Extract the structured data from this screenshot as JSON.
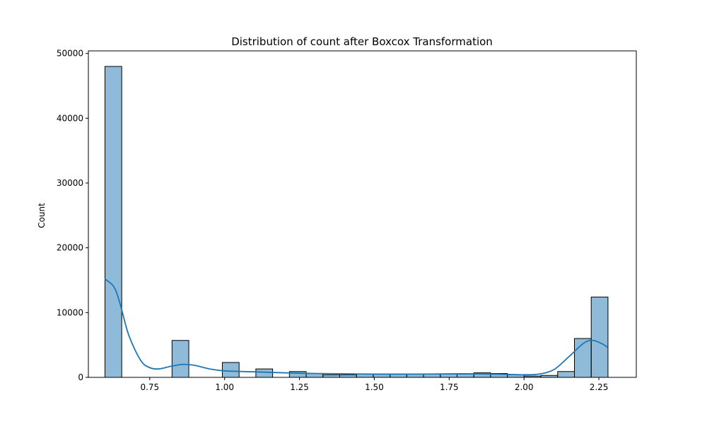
{
  "chart_data": {
    "type": "bar",
    "title": "Distribution of count after Boxcox Transformation",
    "xlabel": "",
    "ylabel": "Count",
    "xlim": [
      0.545,
      2.375
    ],
    "ylim": [
      0,
      50400
    ],
    "grid": false,
    "xticks": [
      {
        "value": 0.75,
        "label": "0.75"
      },
      {
        "value": 1.0,
        "label": "1.00"
      },
      {
        "value": 1.25,
        "label": "1.25"
      },
      {
        "value": 1.5,
        "label": "1.50"
      },
      {
        "value": 1.75,
        "label": "1.75"
      },
      {
        "value": 2.0,
        "label": "2.00"
      },
      {
        "value": 2.25,
        "label": "2.25"
      }
    ],
    "yticks": [
      {
        "value": 0,
        "label": "0"
      },
      {
        "value": 10000,
        "label": "10000"
      },
      {
        "value": 20000,
        "label": "20000"
      },
      {
        "value": 30000,
        "label": "30000"
      },
      {
        "value": 40000,
        "label": "40000"
      },
      {
        "value": 50000,
        "label": "50000"
      }
    ],
    "bin_edges": [
      0.6004,
      0.6564,
      0.7124,
      0.7684,
      0.8244,
      0.8804,
      0.9364,
      0.9924,
      1.0484,
      1.1044,
      1.1604,
      1.2164,
      1.2724,
      1.3284,
      1.3844,
      1.4404,
      1.4964,
      1.5524,
      1.6084,
      1.6644,
      1.7204,
      1.7764,
      1.8324,
      1.8884,
      1.9444,
      2.0004,
      2.0564,
      2.1124,
      2.1684,
      2.2244,
      2.2804
    ],
    "counts": [
      48000,
      0,
      0,
      0,
      5700,
      0,
      0,
      2300,
      0,
      1300,
      0,
      900,
      600,
      400,
      400,
      500,
      500,
      500,
      500,
      500,
      500,
      500,
      700,
      600,
      400,
      200,
      300,
      900,
      6000,
      12400
    ],
    "kde": {
      "x": [
        0.6,
        0.63,
        0.65,
        0.68,
        0.72,
        0.75,
        0.78,
        0.82,
        0.86,
        0.9,
        0.95,
        1.0,
        1.1,
        1.2,
        1.3,
        1.4,
        1.5,
        1.6,
        1.7,
        1.8,
        1.9,
        1.95,
        2.0,
        2.05,
        2.1,
        2.15,
        2.2,
        2.23,
        2.26,
        2.28
      ],
      "y": [
        15200,
        14000,
        11500,
        6500,
        2600,
        1500,
        1300,
        1700,
        2000,
        1850,
        1300,
        1000,
        850,
        700,
        600,
        550,
        500,
        500,
        520,
        550,
        500,
        450,
        400,
        500,
        1200,
        3200,
        5300,
        5700,
        5200,
        4600
      ]
    },
    "colors": {
      "bar_fill": "#1f77b4",
      "bar_fill_opacity": 0.5,
      "bar_edge": "#000000",
      "kde_line": "#1f77b4"
    }
  }
}
